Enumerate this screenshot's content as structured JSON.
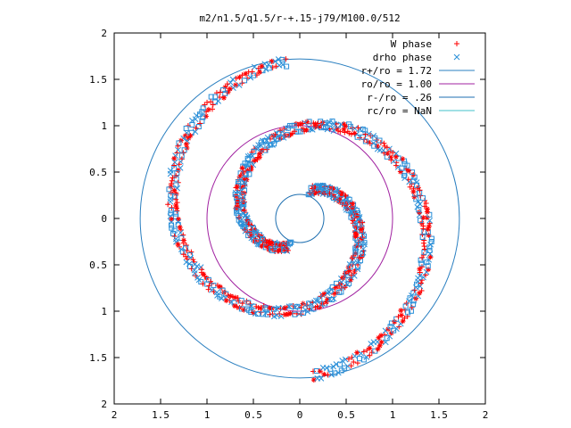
{
  "chart_data": {
    "type": "scatter",
    "title": "m2/n1.5/q1.5/r-+.15-j79/M100.0/512",
    "xlabel": "",
    "ylabel": "",
    "xlim": [
      -2,
      2
    ],
    "ylim": [
      -2,
      2
    ],
    "x_ticks": [
      -2,
      -1.5,
      -1,
      -0.5,
      0,
      0.5,
      1,
      1.5,
      2
    ],
    "x_tick_labels": [
      "2",
      "1.5",
      "1",
      "0.5",
      "0",
      "0.5",
      "1",
      "1.5",
      "2"
    ],
    "y_ticks": [
      2,
      1.5,
      1,
      0.5,
      0,
      -0.5,
      -1,
      -1.5,
      -2
    ],
    "y_tick_labels": [
      "2",
      "1.5",
      "1",
      "0.5",
      "0",
      "0.5",
      "1",
      "1.5",
      "2"
    ],
    "grid": false,
    "legend_position": "top-right",
    "legend": [
      {
        "label": "W phase",
        "kind": "point",
        "symbol": "plus",
        "color": "#ff0000"
      },
      {
        "label": "drho phase",
        "kind": "point",
        "symbol": "cross",
        "color": "#2a8fd8"
      },
      {
        "label": "r+/ro = 1.72",
        "kind": "line",
        "color": "#2a7fc0"
      },
      {
        "label": "ro/ro = 1.00",
        "kind": "line",
        "color": "#a020a0"
      },
      {
        "label": "r-/ro = .26",
        "kind": "line",
        "color": "#1e6fb0"
      },
      {
        "label": "rc/ro = NaN",
        "kind": "line",
        "color": "#40c0c8"
      }
    ],
    "circles": [
      {
        "name": "r+/ro",
        "radius": 1.72,
        "color": "#2a7fc0"
      },
      {
        "name": "ro/ro",
        "radius": 1.0,
        "color": "#a020a0"
      },
      {
        "name": "r-/ro",
        "radius": 0.26,
        "color": "#1e6fb0"
      }
    ],
    "arms": [
      {
        "name": "arm-1",
        "theta_start_deg": 95,
        "theta_end_deg": 430,
        "r_start": 1.7,
        "r_end": 0.32
      },
      {
        "name": "arm-2",
        "theta_start_deg": 275,
        "theta_end_deg": 610,
        "r_start": 1.7,
        "r_end": 0.32
      }
    ],
    "series": [
      {
        "name": "W phase",
        "marker": "plus",
        "color": "#ff0000"
      },
      {
        "name": "drho phase",
        "marker": "cross",
        "color": "#2a8fd8"
      }
    ]
  }
}
